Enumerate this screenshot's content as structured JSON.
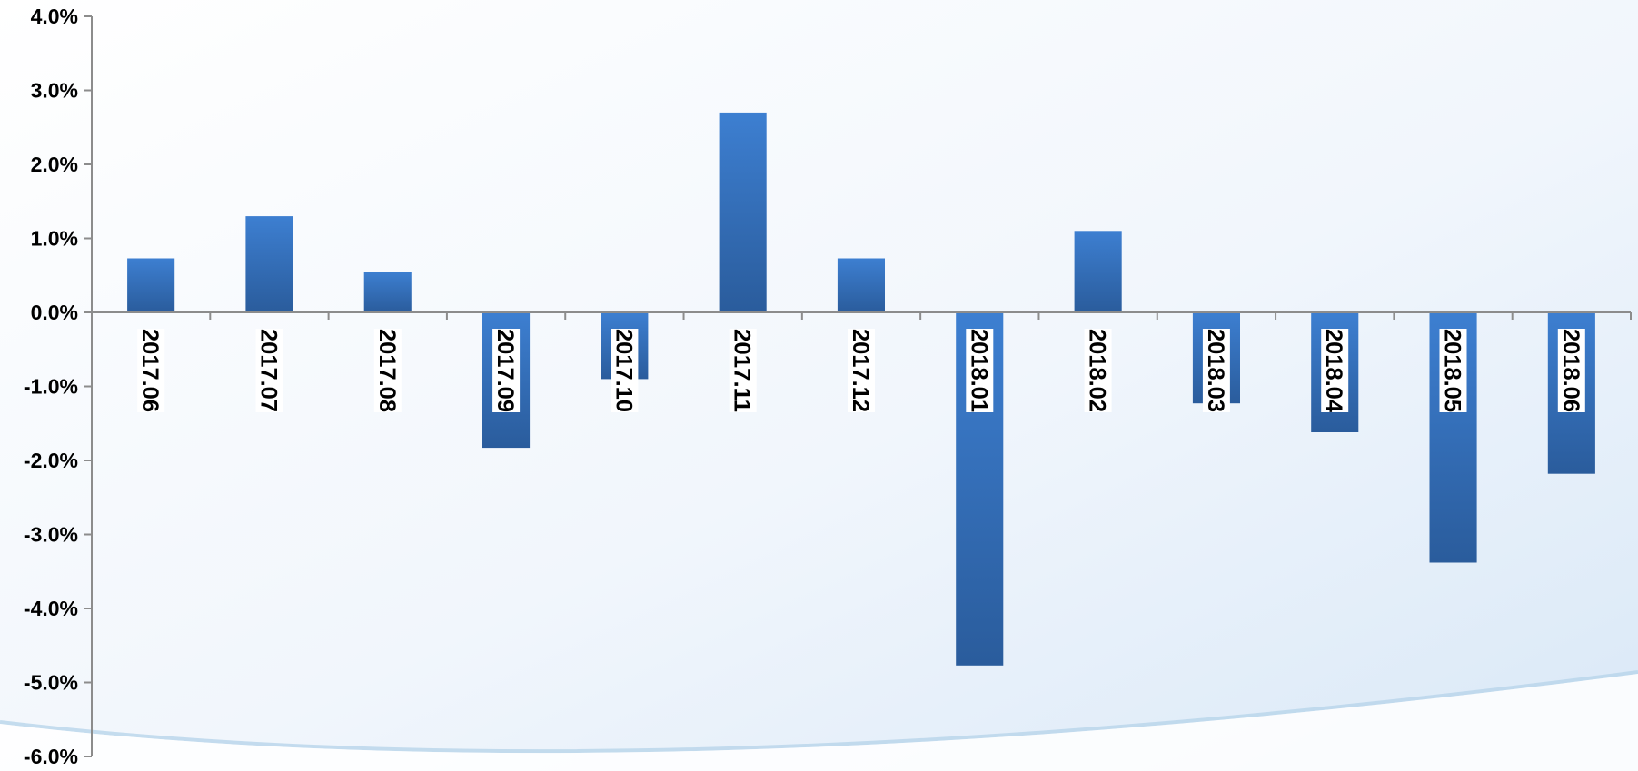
{
  "chart_data": {
    "type": "bar",
    "title": "",
    "xlabel": "",
    "ylabel": "",
    "categories": [
      "2017.06",
      "2017.07",
      "2017.08",
      "2017.09",
      "2017.10",
      "2017.11",
      "2017.12",
      "2018.01",
      "2018.02",
      "2018.03",
      "2018.04",
      "2018.05",
      "2018.06"
    ],
    "values": [
      0.73,
      1.3,
      0.55,
      -1.83,
      -0.9,
      2.7,
      0.73,
      -4.77,
      1.1,
      -1.23,
      -1.62,
      -3.38,
      -2.18
    ],
    "ylim": [
      -6,
      4
    ],
    "yticks": [
      "4.0%",
      "3.0%",
      "2.0%",
      "1.0%",
      "0.0%",
      "-1.0%",
      "-2.0%",
      "-3.0%",
      "-4.0%",
      "-5.0%",
      "-6.0%"
    ],
    "y_unit": "%",
    "grid": false,
    "legend": "none",
    "bar_color_top": "#3d7fd1",
    "bar_color_bottom": "#2a5c9c",
    "axis_color": "#8c8c8c"
  }
}
